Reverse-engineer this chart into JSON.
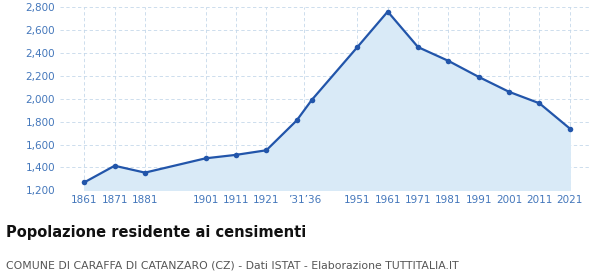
{
  "years": [
    1861,
    1871,
    1881,
    1901,
    1911,
    1921,
    1931,
    1936,
    1951,
    1961,
    1971,
    1981,
    1991,
    2001,
    2011,
    2021
  ],
  "population": [
    1270,
    1415,
    1355,
    1480,
    1510,
    1550,
    1810,
    1990,
    2450,
    2760,
    2450,
    2330,
    2190,
    2060,
    1960,
    1740
  ],
  "x_tick_positions": [
    1861,
    1871,
    1881,
    1901,
    1911,
    1921,
    1933.5,
    1951,
    1961,
    1971,
    1981,
    1991,
    2001,
    2011,
    2021
  ],
  "x_tick_labels": [
    "1861",
    "1871",
    "1881",
    "1901",
    "1911",
    "1921",
    "’31’36",
    "1951",
    "1961",
    "1971",
    "1981",
    "1991",
    "2001",
    "2011",
    "2021"
  ],
  "xlim": [
    1853,
    2028
  ],
  "ylim": [
    1200,
    2800
  ],
  "yticks": [
    1200,
    1400,
    1600,
    1800,
    2000,
    2200,
    2400,
    2600,
    2800
  ],
  "line_color": "#2255aa",
  "fill_color": "#d9eaf7",
  "marker_color": "#2255aa",
  "grid_color": "#c5d8ea",
  "bg_color": "#ffffff",
  "title": "Popolazione residente ai censimenti",
  "subtitle": "COMUNE DI CARAFFA DI CATANZARO (CZ) - Dati ISTAT - Elaborazione TUTTITALIA.IT",
  "title_fontsize": 10.5,
  "subtitle_fontsize": 7.8,
  "tick_fontsize": 7.5,
  "tick_color": "#4477bb"
}
